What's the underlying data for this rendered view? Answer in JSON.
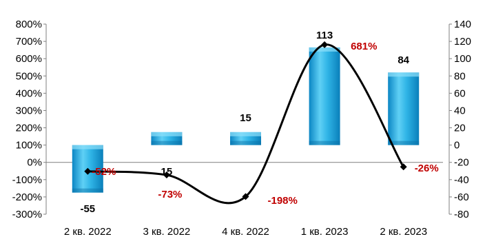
{
  "chart_data": {
    "type": "bar+line",
    "categories": [
      "2 кв. 2022",
      "3 кв. 2022",
      "4 кв. 2022",
      "1 кв. 2023",
      "2 кв. 2023"
    ],
    "bars": {
      "axis": "right",
      "values": [
        -55,
        15,
        15,
        113,
        84
      ],
      "labels": [
        "-55",
        "15",
        "15",
        "113",
        "84"
      ],
      "color": "#29b6e8"
    },
    "line": {
      "axis": "left",
      "values": [
        -52,
        -73,
        -198,
        681,
        -26
      ],
      "labels": [
        "-52%",
        "-73%",
        "-198%",
        "681%",
        "-26%"
      ],
      "color": "#000000",
      "marker": "diamond"
    },
    "left_axis": {
      "ylim": [
        -300,
        800
      ],
      "ticks": [
        "800%",
        "700%",
        "600%",
        "500%",
        "400%",
        "300%",
        "200%",
        "100%",
        "0%",
        "-100%",
        "-200%",
        "-300%"
      ]
    },
    "right_axis": {
      "ylim": [
        -80,
        140
      ],
      "ticks": [
        "140",
        "120",
        "100",
        "80",
        "60",
        "40",
        "20",
        "0",
        "-20",
        "-40",
        "-60",
        "-80"
      ]
    },
    "label_color": "#c00000",
    "grid": false
  }
}
